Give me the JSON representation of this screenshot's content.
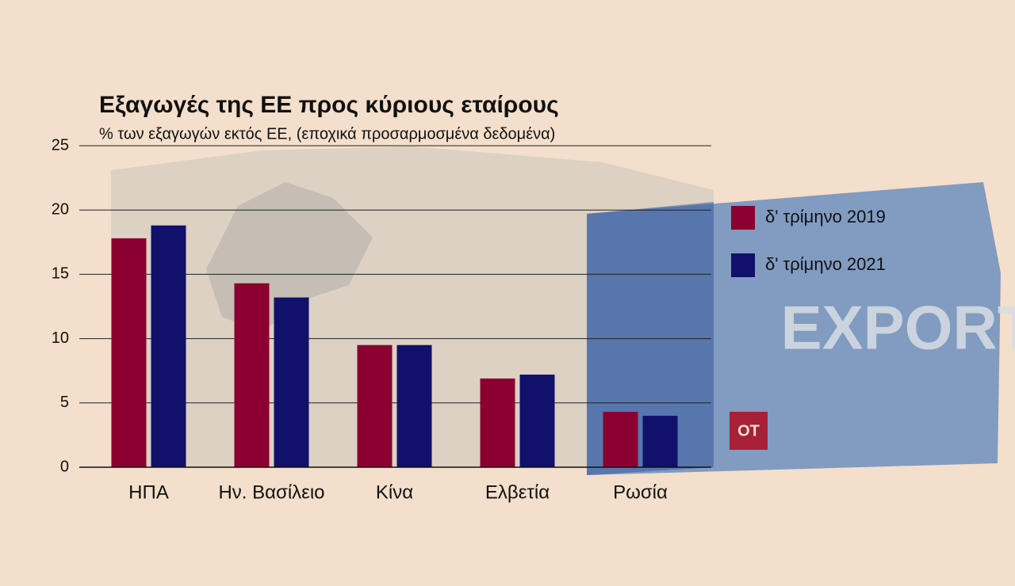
{
  "chart_data": {
    "type": "bar",
    "title": "Εξαγωγές της ΕΕ προς κύριους εταίρους",
    "subtitle": "% των εξαγωγών εκτός ΕΕ, (εποχικά προσαρμοσμένα δεδομένα)",
    "categories": [
      "ΗΠΑ",
      "Ην. Βασίλειο",
      "Κίνα",
      "Ελβετία",
      "Ρωσία"
    ],
    "series": [
      {
        "name": "δ' τρίμηνο 2019",
        "color": "#8b0030",
        "values": [
          17.8,
          14.3,
          9.5,
          6.9,
          4.3
        ]
      },
      {
        "name": "δ' τρίμηνο 2021",
        "color": "#11106b",
        "values": [
          18.8,
          13.2,
          9.5,
          7.2,
          4.0
        ]
      }
    ],
    "ylim": [
      0,
      25
    ],
    "yticks": [
      0,
      5,
      10,
      15,
      20,
      25
    ],
    "grid": true,
    "legend": "right",
    "watermark": "EXPORT",
    "logo": "OT"
  }
}
